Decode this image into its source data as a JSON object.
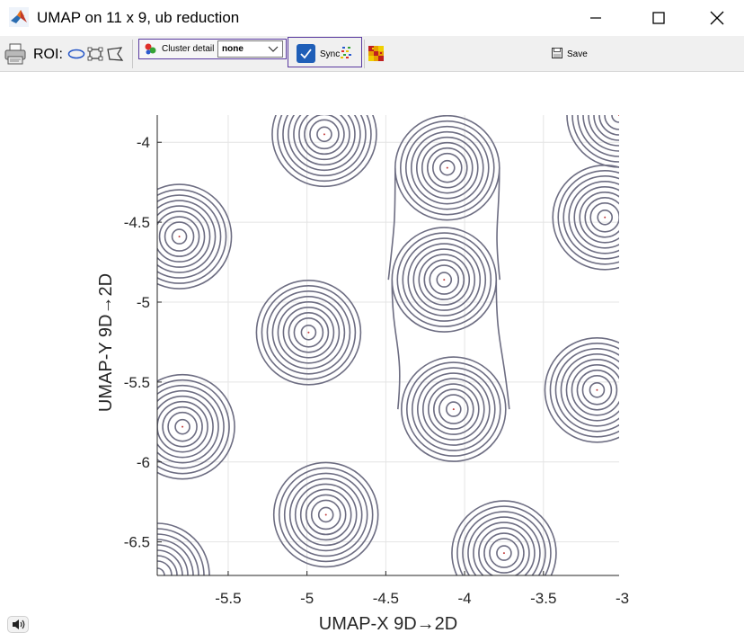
{
  "window": {
    "title": "UMAP on 11 x 9, ub reduction"
  },
  "toolbar": {
    "roi_label": "ROI:",
    "cluster_detail_label": "Cluster detail",
    "cluster_detail_value": "none",
    "sync_label": "Sync",
    "sync_checked": true,
    "save_label": "Save"
  },
  "chart_data": {
    "type": "contour",
    "xlabel": "UMAP-X  9D→2D",
    "ylabel": "UMAP-Y  9D→2D",
    "xlim": [
      -5.95,
      -3.02
    ],
    "ylim": [
      -6.71,
      -3.83
    ],
    "x_ticks": [
      -5.5,
      -5,
      -4.5,
      -4,
      -3.5,
      -3
    ],
    "x_tick_labels": [
      "-5.5",
      "-5",
      "-4.5",
      "-4",
      "-3.5",
      "-3"
    ],
    "y_ticks": [
      -4,
      -4.5,
      -5,
      -5.5,
      -6,
      -6.5
    ],
    "y_tick_labels": [
      "-4",
      "-4.5",
      "-5",
      "-5.5",
      "-6",
      "-6.5"
    ],
    "grid": true,
    "contour_color": "#6d6d82",
    "clusters": [
      {
        "x": -4.89,
        "y": -3.95
      },
      {
        "x": -4.11,
        "y": -4.16
      },
      {
        "x": -3.11,
        "y": -4.47
      },
      {
        "x": -5.81,
        "y": -4.59
      },
      {
        "x": -4.13,
        "y": -4.86
      },
      {
        "x": -4.99,
        "y": -5.19
      },
      {
        "x": -3.16,
        "y": -5.55
      },
      {
        "x": -4.07,
        "y": -5.67
      },
      {
        "x": -5.79,
        "y": -5.78
      },
      {
        "x": -4.88,
        "y": -6.33
      },
      {
        "x": -3.75,
        "y": -6.57
      },
      {
        "x": -5.95,
        "y": -6.71
      },
      {
        "x": -3.02,
        "y": -3.83
      }
    ]
  }
}
